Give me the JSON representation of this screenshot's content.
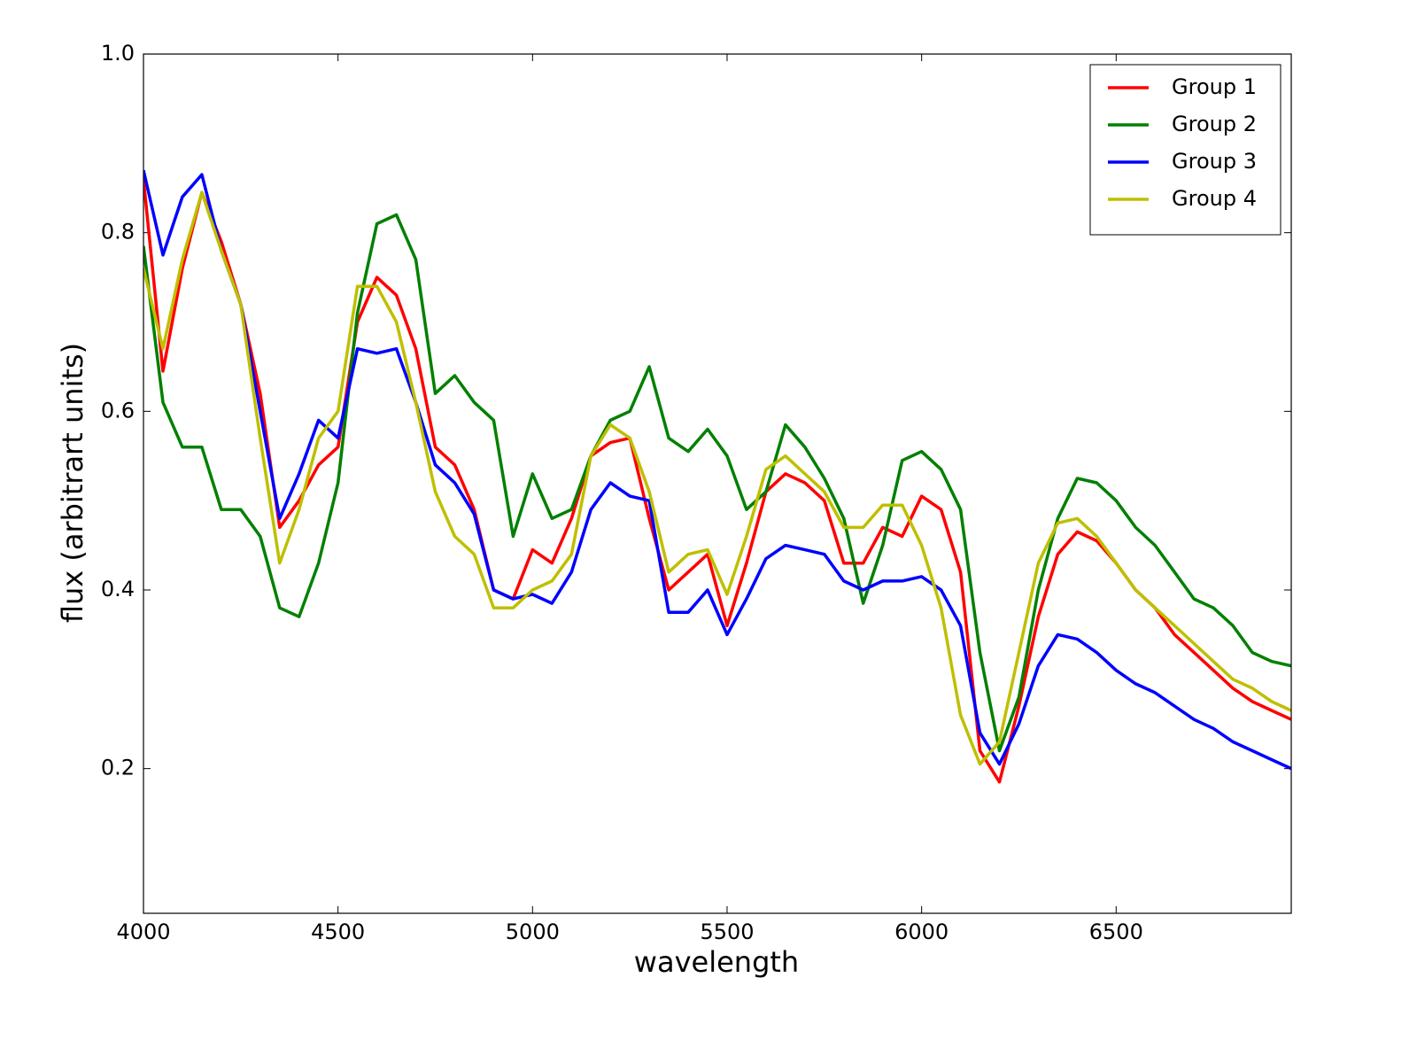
{
  "chart_data": {
    "type": "line",
    "xlabel": "wavelength",
    "ylabel": "flux (arbitrart units)",
    "x": [
      4000,
      4050,
      4100,
      4150,
      4200,
      4250,
      4300,
      4350,
      4400,
      4450,
      4500,
      4550,
      4600,
      4650,
      4700,
      4750,
      4800,
      4850,
      4900,
      4950,
      5000,
      5050,
      5100,
      5150,
      5200,
      5250,
      5300,
      5350,
      5400,
      5450,
      5500,
      5550,
      5600,
      5650,
      5700,
      5750,
      5800,
      5850,
      5900,
      5950,
      6000,
      6050,
      6100,
      6150,
      6200,
      6250,
      6300,
      6350,
      6400,
      6450,
      6500,
      6550,
      6600,
      6650,
      6700,
      6750,
      6800,
      6850,
      6900,
      6950
    ],
    "series": [
      {
        "name": "Group 1",
        "color": "#ff0000",
        "values": [
          0.86,
          0.645,
          0.76,
          0.845,
          0.79,
          0.72,
          0.62,
          0.47,
          0.5,
          0.54,
          0.56,
          0.7,
          0.75,
          0.73,
          0.67,
          0.56,
          0.54,
          0.49,
          0.4,
          0.39,
          0.445,
          0.43,
          0.48,
          0.55,
          0.565,
          0.57,
          0.48,
          0.4,
          0.42,
          0.44,
          0.36,
          0.43,
          0.51,
          0.53,
          0.52,
          0.5,
          0.43,
          0.43,
          0.47,
          0.46,
          0.505,
          0.49,
          0.42,
          0.22,
          0.185,
          0.27,
          0.37,
          0.44,
          0.465,
          0.455,
          0.43,
          0.4,
          0.38,
          0.35,
          0.33,
          0.31,
          0.29,
          0.275,
          0.265,
          0.255
        ]
      },
      {
        "name": "Group 2",
        "color": "#008000",
        "values": [
          0.785,
          0.61,
          0.56,
          0.56,
          0.49,
          0.49,
          0.46,
          0.38,
          0.37,
          0.43,
          0.52,
          0.71,
          0.81,
          0.82,
          0.77,
          0.62,
          0.64,
          0.61,
          0.59,
          0.46,
          0.53,
          0.48,
          0.49,
          0.55,
          0.59,
          0.6,
          0.65,
          0.57,
          0.555,
          0.58,
          0.55,
          0.49,
          0.51,
          0.585,
          0.56,
          0.525,
          0.48,
          0.385,
          0.45,
          0.545,
          0.555,
          0.535,
          0.49,
          0.33,
          0.22,
          0.28,
          0.4,
          0.48,
          0.525,
          0.52,
          0.5,
          0.47,
          0.45,
          0.42,
          0.39,
          0.38,
          0.36,
          0.33,
          0.32,
          0.315
        ]
      },
      {
        "name": "Group 3",
        "color": "#0000ff",
        "values": [
          0.87,
          0.775,
          0.84,
          0.865,
          0.78,
          0.72,
          0.6,
          0.48,
          0.53,
          0.59,
          0.57,
          0.67,
          0.665,
          0.67,
          0.61,
          0.54,
          0.52,
          0.485,
          0.4,
          0.39,
          0.395,
          0.385,
          0.42,
          0.49,
          0.52,
          0.505,
          0.5,
          0.375,
          0.375,
          0.4,
          0.35,
          0.39,
          0.435,
          0.45,
          0.445,
          0.44,
          0.41,
          0.4,
          0.41,
          0.41,
          0.415,
          0.4,
          0.36,
          0.24,
          0.205,
          0.25,
          0.315,
          0.35,
          0.345,
          0.33,
          0.31,
          0.295,
          0.285,
          0.27,
          0.255,
          0.245,
          0.23,
          0.22,
          0.21,
          0.2
        ]
      },
      {
        "name": "Group 4",
        "color": "#bfbf00",
        "values": [
          0.76,
          0.67,
          0.77,
          0.845,
          0.78,
          0.72,
          0.57,
          0.43,
          0.49,
          0.57,
          0.6,
          0.74,
          0.74,
          0.7,
          0.61,
          0.51,
          0.46,
          0.44,
          0.38,
          0.38,
          0.4,
          0.41,
          0.44,
          0.55,
          0.585,
          0.57,
          0.51,
          0.42,
          0.44,
          0.445,
          0.395,
          0.46,
          0.535,
          0.55,
          0.53,
          0.51,
          0.47,
          0.47,
          0.495,
          0.495,
          0.45,
          0.38,
          0.26,
          0.205,
          0.23,
          0.33,
          0.43,
          0.475,
          0.48,
          0.46,
          0.43,
          0.4,
          0.38,
          0.36,
          0.34,
          0.32,
          0.3,
          0.29,
          0.275,
          0.265
        ]
      }
    ],
    "xlim": [
      4000,
      6950
    ],
    "ylim": [
      0.038,
      1.0
    ],
    "xticks": [
      4000,
      4500,
      5000,
      5500,
      6000,
      6500
    ],
    "yticks": [
      0.2,
      0.4,
      0.6,
      0.8,
      {
        "value": 1,
        "label": "1.0"
      }
    ],
    "legend": "upper right",
    "grid": false
  }
}
